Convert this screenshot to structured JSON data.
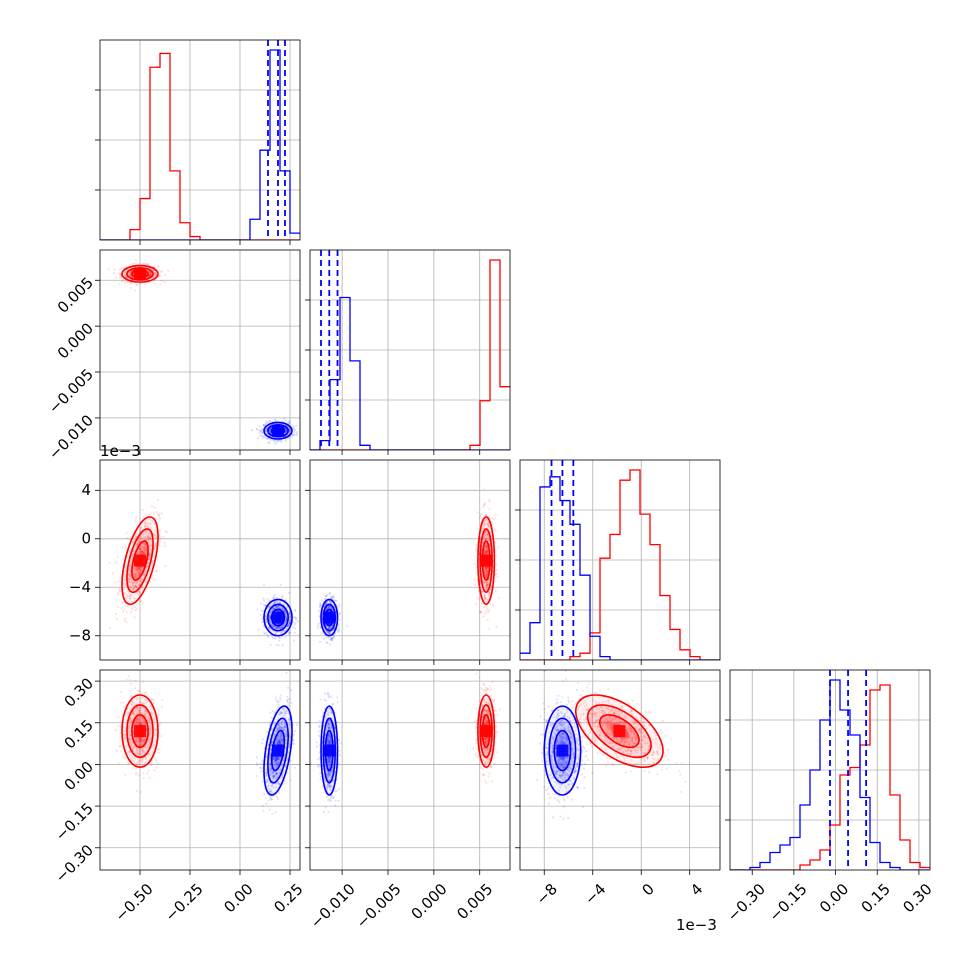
{
  "chart_data": {
    "type": "corner",
    "title": "",
    "params": [
      {
        "xlim": [
          -0.7,
          0.3
        ],
        "ticks": [
          -0.5,
          -0.25,
          0.0,
          0.25
        ],
        "tick_labels": [
          "−0.50",
          "−0.25",
          "0.00",
          "0.25"
        ],
        "offset": ""
      },
      {
        "xlim": [
          -0.0135,
          0.0083
        ],
        "ticks": [
          -0.01,
          -0.005,
          0.0,
          0.005
        ],
        "tick_labels": [
          "−0.010",
          "−0.005",
          "0.000",
          "0.005"
        ],
        "offset": ""
      },
      {
        "xlim": [
          -10.0,
          6.5
        ],
        "ticks": [
          -8,
          -4,
          0,
          4
        ],
        "tick_labels": [
          "−8",
          "−4",
          "0",
          "4"
        ],
        "offset": "1e−3"
      },
      {
        "xlim": [
          -0.38,
          0.34
        ],
        "ticks": [
          -0.3,
          -0.15,
          0.0,
          0.15,
          0.3
        ],
        "tick_labels": [
          "−0.30",
          "−0.15",
          "0.00",
          "0.15",
          "0.30"
        ],
        "offset": ""
      }
    ],
    "y_tick_labels": {
      "1": [
        "0.005",
        "0.000",
        "−0.005",
        "−0.010"
      ],
      "2": [
        "4",
        "0",
        "−4",
        "−8"
      ],
      "3": [
        "0.30",
        "0.15",
        "0.00",
        "−0.15",
        "−0.30"
      ]
    },
    "grid": true,
    "series": [
      {
        "color": "#ff0000",
        "means": [
          -0.5,
          0.0057,
          -1.8,
          0.12
        ],
        "sigmas": [
          0.045,
          0.00045,
          1.8,
          0.065
        ],
        "correlations": {
          "0-2": 0.55,
          "2-3": -0.55
        },
        "marginal_peaks": [
          1.0,
          1.0,
          1.0,
          1.0
        ]
      },
      {
        "color": "#0000ff",
        "means": [
          0.19,
          -0.0114,
          -6.5,
          0.05
        ],
        "sigmas": [
          0.035,
          0.00045,
          0.75,
          0.08
        ],
        "correlations": {
          "0-3": 0.45
        },
        "quantile_lines": [
          [
            0.14,
            0.19,
            0.225
          ],
          [
            -0.0123,
            -0.0114,
            -0.0105
          ],
          [
            -7.4,
            -6.5,
            -5.6
          ],
          [
            -0.02,
            0.045,
            0.11
          ]
        ]
      }
    ],
    "histograms": [
      {
        "bins": [
          -0.7,
          0.3,
          20
        ],
        "red": [
          0,
          0,
          0,
          3,
          12,
          50,
          54,
          20,
          5,
          1,
          0,
          0,
          0,
          0,
          0,
          0,
          0,
          0,
          0,
          0
        ],
        "blue": [
          0,
          0,
          0,
          0,
          0,
          0,
          0,
          0,
          0,
          0,
          0,
          0,
          0,
          0,
          0,
          6,
          26,
          55,
          20,
          2
        ]
      },
      {
        "bins": [
          -0.0135,
          0.0083,
          20
        ],
        "red": [
          0,
          0,
          0,
          0,
          0,
          0,
          0,
          0,
          0,
          0,
          0,
          0,
          0,
          0,
          0,
          0,
          2,
          21,
          81,
          27
        ],
        "blue": [
          0,
          4,
          30,
          65,
          38,
          2,
          0,
          0,
          0,
          0,
          0,
          0,
          0,
          0,
          0,
          0,
          0,
          0,
          0,
          0
        ]
      },
      {
        "bins": [
          -10.0,
          6.5,
          20
        ],
        "red": [
          0,
          0,
          0,
          0,
          0,
          1,
          2,
          8,
          30,
          37,
          53,
          56,
          43,
          34,
          19,
          9,
          3,
          1,
          0,
          0
        ],
        "blue": [
          2,
          11,
          51,
          54,
          47,
          40,
          25,
          7,
          1,
          0,
          0,
          0,
          0,
          0,
          0,
          0,
          0,
          0,
          0,
          0
        ]
      },
      {
        "bins": [
          -0.38,
          0.34,
          20
        ],
        "red": [
          0,
          0,
          0,
          0,
          0,
          0,
          0,
          2,
          4,
          8,
          18,
          38,
          41,
          50,
          72,
          74,
          30,
          12,
          3,
          1
        ],
        "blue": [
          0,
          0,
          1,
          3,
          7,
          10,
          13,
          26,
          40,
          60,
          76,
          64,
          54,
          29,
          11,
          3,
          1,
          0,
          0,
          0
        ]
      }
    ]
  }
}
